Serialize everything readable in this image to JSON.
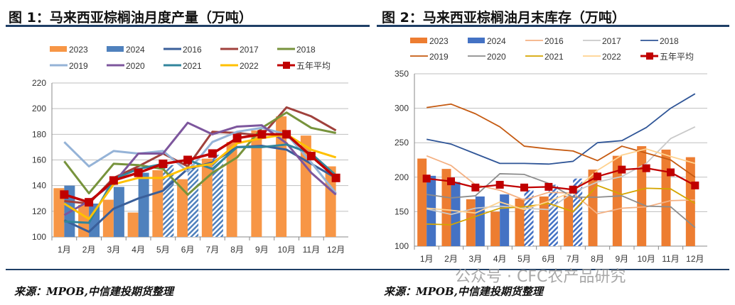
{
  "chart_data": [
    {
      "type": "bar+line",
      "title": "图 1：马来西亚棕榈油月度产量（万吨）",
      "source": "来源：MPOB,中信建投期货整理",
      "categories": [
        "1月",
        "2月",
        "3月",
        "4月",
        "5月",
        "6月",
        "7月",
        "8月",
        "9月",
        "10月",
        "11月",
        "12月"
      ],
      "ylim": [
        100,
        220
      ],
      "yticks": [
        100,
        120,
        140,
        160,
        180,
        200,
        220
      ],
      "grid": true,
      "legend": "top",
      "bars": [
        {
          "name": "2023",
          "color": "#f79646",
          "values": [
            138,
            125,
            129,
            119,
            152,
            145,
            161,
            174,
            183,
            194,
            179,
            155
          ]
        },
        {
          "name": "2024",
          "color": "#4f81bd",
          "values": [
            140,
            126,
            139,
            150,
            156,
            160,
            164,
            null,
            null,
            null,
            null,
            null
          ],
          "hatched_months": [
            "5月",
            "6月",
            "7月"
          ]
        }
      ],
      "lines": [
        {
          "name": "2016",
          "color": "#3a5f9a",
          "values": [
            113,
            104,
            122,
            130,
            136,
            153,
            158,
            170,
            171,
            168,
            157,
            146
          ]
        },
        {
          "name": "2017",
          "color": "#a0413c",
          "values": [
            128,
            126,
            146,
            155,
            165,
            155,
            182,
            181,
            179,
            201,
            194,
            183
          ]
        },
        {
          "name": "2018",
          "color": "#77933c",
          "values": [
            159,
            134,
            157,
            156,
            153,
            133,
            150,
            162,
            185,
            197,
            185,
            181
          ]
        },
        {
          "name": "2019",
          "color": "#95b3d7",
          "values": [
            174,
            155,
            167,
            165,
            167,
            151,
            174,
            182,
            185,
            180,
            158,
            134
          ]
        },
        {
          "name": "2020",
          "color": "#7d569d",
          "values": [
            117,
            128,
            142,
            165,
            165,
            189,
            180,
            186,
            187,
            173,
            150,
            133
          ]
        },
        {
          "name": "2021",
          "color": "#31859c",
          "values": [
            112,
            111,
            145,
            153,
            157,
            160,
            153,
            170,
            170,
            172,
            165,
            148
          ]
        },
        {
          "name": "2022",
          "color": "#ffc000",
          "values": [
            126,
            114,
            141,
            146,
            146,
            154,
            157,
            173,
            177,
            180,
            168,
            162
          ]
        },
        {
          "name": "五年平均",
          "color": "#c00000",
          "marker": "square",
          "values": [
            133,
            127,
            144,
            150,
            157,
            160,
            165,
            177,
            180,
            180,
            163,
            146
          ]
        }
      ]
    },
    {
      "type": "bar+line",
      "title": "图 2：马来西亚棕榈油月末库存（万吨）",
      "source": "来源：MPOB,中信建投期货整理",
      "categories": [
        "1月",
        "2月",
        "3月",
        "4月",
        "5月",
        "6月",
        "7月",
        "8月",
        "9月",
        "10月",
        "11月",
        "12月"
      ],
      "ylim": [
        100,
        350
      ],
      "yticks": [
        100,
        150,
        200,
        250,
        300,
        350
      ],
      "grid": true,
      "legend": "top",
      "bars": [
        {
          "name": "2023",
          "color": "#ed7d31",
          "values": [
            227,
            212,
            168,
            150,
            169,
            172,
            173,
            211,
            231,
            245,
            240,
            229
          ]
        },
        {
          "name": "2024",
          "color": "#4472c4",
          "values": [
            202,
            193,
            172,
            175,
            181,
            189,
            198,
            null,
            null,
            null,
            null,
            null
          ],
          "hatched_months": [
            "5月",
            "6月",
            "7月"
          ]
        }
      ],
      "lines": [
        {
          "name": "2016",
          "color": "#f4b183",
          "values": [
            231,
            217,
            189,
            181,
            167,
            178,
            177,
            147,
            155,
            157,
            166,
            167
          ]
        },
        {
          "name": "2017",
          "color": "#c9c9c9",
          "values": [
            154,
            146,
            155,
            158,
            155,
            153,
            178,
            193,
            201,
            220,
            256,
            273
          ]
        },
        {
          "name": "2018",
          "color": "#2f5597",
          "values": [
            255,
            248,
            234,
            220,
            220,
            219,
            223,
            250,
            253,
            272,
            300,
            321
          ]
        },
        {
          "name": "2019",
          "color": "#c55a11",
          "values": [
            301,
            306,
            292,
            273,
            245,
            241,
            238,
            224,
            245,
            235,
            225,
            200
          ]
        },
        {
          "name": "2020",
          "color": "#8c8c8c",
          "values": [
            175,
            170,
            173,
            205,
            204,
            191,
            171,
            171,
            173,
            158,
            157,
            127
          ]
        },
        {
          "name": "2021",
          "color": "#d4a500",
          "values": [
            132,
            131,
            143,
            155,
            157,
            162,
            150,
            188,
            175,
            184,
            183,
            162
          ]
        },
        {
          "name": "2022",
          "color": "#ffd28f",
          "values": [
            155,
            152,
            148,
            164,
            153,
            165,
            179,
            210,
            232,
            241,
            230,
            220
          ]
        },
        {
          "name": "五年平均",
          "color": "#c00000",
          "marker": "square",
          "values": [
            198,
            194,
            185,
            189,
            185,
            186,
            182,
            201,
            211,
            213,
            207,
            188
          ]
        }
      ]
    }
  ],
  "watermark": "公众号 · CFC农产品研究"
}
